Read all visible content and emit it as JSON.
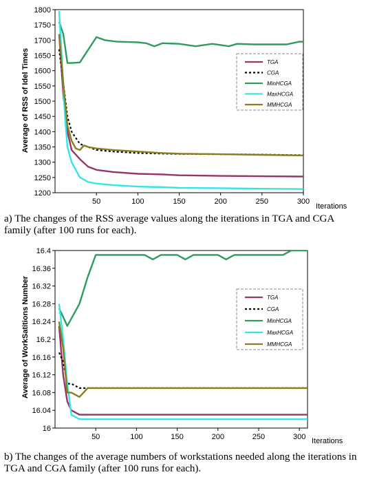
{
  "chart_data": [
    {
      "type": "line",
      "caption": "a) The changes of the RSS average values along the iterations in TGA and CGA family (after 100 runs for each).",
      "ylabel": "Average of RSS of Idel Times",
      "xlabel": "Iterations",
      "xlim": [
        0,
        300
      ],
      "ylim": [
        1200,
        1800
      ],
      "xticks": [
        "50",
        "100",
        "150",
        "200",
        "250",
        "300"
      ],
      "yticks": [
        "1200",
        "1250",
        "1300",
        "1350",
        "1400",
        "1450",
        "1500",
        "1550",
        "1600",
        "1650",
        "1700",
        "1750",
        "1800"
      ],
      "legend_position": "upper-right",
      "series": [
        {
          "name": "TGA",
          "color": "#993366",
          "dash": "solid",
          "x": [
            5,
            10,
            15,
            20,
            30,
            40,
            50,
            70,
            100,
            130,
            150,
            200,
            250,
            300
          ],
          "y": [
            1720,
            1520,
            1400,
            1340,
            1310,
            1285,
            1275,
            1268,
            1262,
            1260,
            1257,
            1255,
            1254,
            1253
          ]
        },
        {
          "name": "CGA",
          "color": "#000000",
          "dash": "dotted",
          "x": [
            5,
            10,
            15,
            20,
            25,
            30,
            40,
            50,
            70,
            100,
            130,
            150,
            200,
            250,
            300
          ],
          "y": [
            1670,
            1560,
            1450,
            1400,
            1380,
            1360,
            1350,
            1340,
            1335,
            1330,
            1328,
            1327,
            1326,
            1325,
            1323
          ]
        },
        {
          "name": "MinHCGA",
          "color": "#2E9A5C",
          "dash": "solid",
          "x": [
            5,
            10,
            15,
            20,
            30,
            50,
            60,
            75,
            100,
            110,
            120,
            130,
            150,
            170,
            190,
            210,
            220,
            240,
            260,
            280,
            295,
            300
          ],
          "y": [
            1760,
            1720,
            1625,
            1625,
            1627,
            1710,
            1700,
            1695,
            1693,
            1690,
            1680,
            1690,
            1688,
            1680,
            1688,
            1680,
            1688,
            1686,
            1686,
            1686,
            1695,
            1695
          ]
        },
        {
          "name": "MaxHCGA",
          "color": "#33E5E8",
          "dash": "solid",
          "x": [
            5,
            8,
            10,
            12,
            15,
            20,
            30,
            40,
            50,
            70,
            100,
            130,
            150,
            200,
            250,
            300
          ],
          "y": [
            1795,
            1650,
            1550,
            1450,
            1350,
            1300,
            1250,
            1235,
            1230,
            1225,
            1220,
            1218,
            1216,
            1215,
            1213,
            1212
          ]
        },
        {
          "name": "MMHCGA",
          "color": "#8A7D1F",
          "dash": "solid",
          "x": [
            5,
            10,
            15,
            20,
            25,
            30,
            35,
            40,
            50,
            70,
            100,
            130,
            150,
            200,
            250,
            300
          ],
          "y": [
            1720,
            1560,
            1420,
            1370,
            1345,
            1340,
            1355,
            1350,
            1345,
            1340,
            1335,
            1330,
            1328,
            1326,
            1324,
            1322
          ]
        }
      ]
    },
    {
      "type": "line",
      "caption": "b) The changes of the average numbers of workstations needed along the iterations in TGA and CGA family (after 100 runs for each).",
      "ylabel": "Average of WorkSatitions Number",
      "xlabel": "Iterations",
      "xlim": [
        0,
        310
      ],
      "ylim": [
        16.0,
        16.4
      ],
      "xticks": [
        "50",
        "100",
        "150",
        "200",
        "250",
        "300"
      ],
      "yticks": [
        "16",
        "16.04",
        "16.08",
        "16.12",
        "16.16",
        "16.2",
        "16.24",
        "16.28",
        "16.32",
        "16.36",
        "16.4"
      ],
      "legend_position": "upper-right",
      "series": [
        {
          "name": "TGA",
          "color": "#993366",
          "dash": "solid",
          "x": [
            5,
            10,
            15,
            20,
            30,
            50,
            100,
            150,
            200,
            250,
            300,
            310
          ],
          "y": [
            16.23,
            16.12,
            16.06,
            16.04,
            16.03,
            16.03,
            16.03,
            16.03,
            16.03,
            16.03,
            16.03,
            16.03
          ]
        },
        {
          "name": "CGA",
          "color": "#000000",
          "dash": "dotted",
          "x": [
            5,
            10,
            15,
            20,
            30,
            40,
            50,
            100,
            150,
            200,
            250,
            300,
            310
          ],
          "y": [
            16.17,
            16.15,
            16.1,
            16.1,
            16.09,
            16.09,
            16.09,
            16.09,
            16.09,
            16.09,
            16.09,
            16.09,
            16.09
          ]
        },
        {
          "name": "MinHCGA",
          "color": "#2E9A5C",
          "dash": "solid",
          "x": [
            5,
            15,
            30,
            40,
            50,
            60,
            70,
            80,
            100,
            110,
            120,
            130,
            150,
            160,
            170,
            180,
            200,
            210,
            220,
            240,
            260,
            280,
            290,
            300,
            310
          ],
          "y": [
            16.27,
            16.23,
            16.28,
            16.34,
            16.39,
            16.39,
            16.39,
            16.39,
            16.39,
            16.39,
            16.38,
            16.39,
            16.39,
            16.38,
            16.39,
            16.39,
            16.39,
            16.38,
            16.39,
            16.39,
            16.39,
            16.39,
            16.4,
            16.4,
            16.4
          ]
        },
        {
          "name": "MaxHCGA",
          "color": "#33E5E8",
          "dash": "solid",
          "x": [
            5,
            10,
            15,
            20,
            30,
            40,
            50,
            100,
            150,
            200,
            250,
            300,
            310
          ],
          "y": [
            16.28,
            16.2,
            16.1,
            16.03,
            16.02,
            16.02,
            16.02,
            16.02,
            16.02,
            16.02,
            16.02,
            16.02,
            16.02
          ]
        },
        {
          "name": "MMHCGA",
          "color": "#8A7D1F",
          "dash": "solid",
          "x": [
            5,
            10,
            15,
            20,
            30,
            40,
            50,
            100,
            150,
            200,
            250,
            300,
            310
          ],
          "y": [
            16.24,
            16.18,
            16.08,
            16.08,
            16.07,
            16.09,
            16.09,
            16.09,
            16.09,
            16.09,
            16.09,
            16.09,
            16.09
          ]
        }
      ]
    }
  ]
}
